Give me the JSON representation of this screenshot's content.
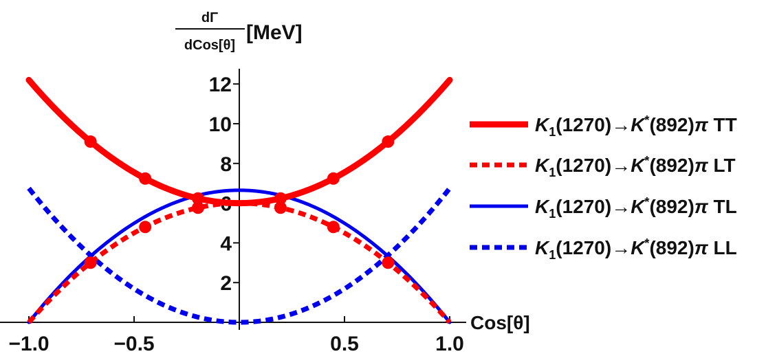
{
  "chart_data": {
    "type": "line",
    "title": "",
    "ylabel": {
      "numerator": "dΓ",
      "denominator": "dCos[θ]",
      "unit": "[MeV]"
    },
    "xlabel": "Cos[θ]",
    "xlim": [
      -1.0,
      1.0
    ],
    "ylim": [
      0,
      13
    ],
    "x_ticks": [
      {
        "value": -1.0,
        "label": "−1.0"
      },
      {
        "value": -0.5,
        "label": "−0.5"
      },
      {
        "value": 0.5,
        "label": "0.5"
      },
      {
        "value": 1.0,
        "label": "1.0"
      }
    ],
    "y_ticks": [
      {
        "value": 2,
        "label": "2"
      },
      {
        "value": 4,
        "label": "4"
      },
      {
        "value": 6,
        "label": "6"
      },
      {
        "value": 8,
        "label": "8"
      },
      {
        "value": 10,
        "label": "10"
      },
      {
        "value": 12,
        "label": "12"
      }
    ],
    "series": [
      {
        "name": "K1(1270)→K*(892)π TT",
        "legend": {
          "K": "K",
          "sub": "1",
          "mid": "(1270)→",
          "K2": "K",
          "sup": "*",
          "tail": "(892)",
          "pi": "π",
          "pol": "TT"
        },
        "color": "#ff0000",
        "style": "solid",
        "formula": {
          "a": 6.0,
          "b": 6.2
        },
        "markers": [
          -0.7071,
          -0.4472,
          -0.1961,
          0.1961,
          0.4472,
          0.7071
        ]
      },
      {
        "name": "K1(1270)→K*(892)π LT",
        "legend": {
          "K": "K",
          "sub": "1",
          "mid": "(1270)→",
          "K2": "K",
          "sup": "*",
          "tail": "(892)",
          "pi": "π",
          "pol": "LT"
        },
        "color": "#ff0000",
        "style": "dotted",
        "formula": {
          "a": 6.0,
          "b": -6.0
        },
        "markers": [
          -0.7071,
          -0.4472,
          -0.1961,
          0.1961,
          0.4472,
          0.7071
        ]
      },
      {
        "name": "K1(1270)→K*(892)π TL",
        "legend": {
          "K": "K",
          "sub": "1",
          "mid": "(1270)→",
          "K2": "K",
          "sup": "*",
          "tail": "(892)",
          "pi": "π",
          "pol": "TL"
        },
        "color": "#0000ee",
        "style": "solid",
        "formula": {
          "a": 6.65,
          "b": -6.65
        },
        "markers": []
      },
      {
        "name": "K1(1270)→K*(892)π LL",
        "legend": {
          "K": "K",
          "sub": "1",
          "mid": "(1270)→",
          "K2": "K",
          "sup": "*",
          "tail": "(892)",
          "pi": "π",
          "pol": "LL"
        },
        "color": "#0000ee",
        "style": "dotted",
        "formula": {
          "a": 0.0,
          "b": 6.75
        },
        "markers": []
      }
    ]
  }
}
